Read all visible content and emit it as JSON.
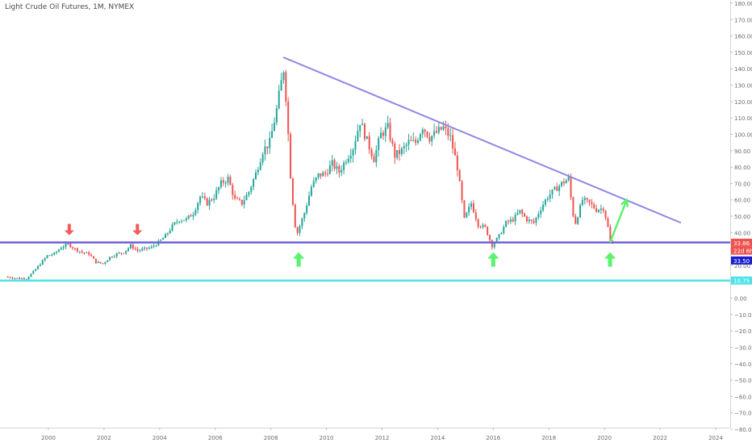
{
  "chart_data": {
    "type": "candlestick",
    "title": "Light Crude Oil Futures, 1M, NYMEX",
    "xlim": [
      1998.5,
      2025.5
    ],
    "ylim": [
      -80,
      180
    ],
    "x_ticks": [
      "2000",
      "2002",
      "2004",
      "2006",
      "2008",
      "2010",
      "2012",
      "2014",
      "2016",
      "2018",
      "2020",
      "2022",
      "2024"
    ],
    "y_ticks": [
      "180.00",
      "170.00",
      "160.00",
      "150.00",
      "140.00",
      "130.00",
      "120.00",
      "110.00",
      "100.00",
      "90.00",
      "80.00",
      "70.00",
      "60.00",
      "50.00",
      "40.00",
      "30.00",
      "20.00",
      "10.00",
      "0.00",
      "−10.00",
      "−20.00",
      "−30.00",
      "−40.00",
      "−50.00",
      "−60.00",
      "−70.00",
      "−80.00"
    ],
    "series": [
      {
        "kind": "price",
        "points": [
          [
            1998.5,
            13
          ],
          [
            1999.0,
            12
          ],
          [
            1999.25,
            12
          ],
          [
            1999.5,
            16
          ],
          [
            1999.75,
            21
          ],
          [
            2000.0,
            26
          ],
          [
            2000.25,
            27
          ],
          [
            2000.5,
            31
          ],
          [
            2000.75,
            33
          ],
          [
            2001.0,
            30
          ],
          [
            2001.25,
            28
          ],
          [
            2001.5,
            27
          ],
          [
            2001.75,
            22
          ],
          [
            2002.0,
            21
          ],
          [
            2002.25,
            25
          ],
          [
            2002.5,
            27
          ],
          [
            2002.75,
            28
          ],
          [
            2003.0,
            32
          ],
          [
            2003.25,
            29
          ],
          [
            2003.5,
            30
          ],
          [
            2003.75,
            31
          ],
          [
            2004.0,
            34
          ],
          [
            2004.25,
            38
          ],
          [
            2004.5,
            44
          ],
          [
            2004.75,
            48
          ],
          [
            2005.0,
            48
          ],
          [
            2005.25,
            52
          ],
          [
            2005.5,
            62
          ],
          [
            2005.75,
            58
          ],
          [
            2006.0,
            62
          ],
          [
            2006.25,
            70
          ],
          [
            2006.5,
            73
          ],
          [
            2006.75,
            60
          ],
          [
            2007.0,
            58
          ],
          [
            2007.25,
            65
          ],
          [
            2007.5,
            76
          ],
          [
            2007.75,
            90
          ],
          [
            2008.0,
            95
          ],
          [
            2008.25,
            115
          ],
          [
            2008.5,
            140
          ],
          [
            2008.6,
            120
          ],
          [
            2008.75,
            75
          ],
          [
            2008.9,
            45
          ],
          [
            2009.0,
            40
          ],
          [
            2009.25,
            52
          ],
          [
            2009.5,
            68
          ],
          [
            2009.75,
            75
          ],
          [
            2010.0,
            76
          ],
          [
            2010.25,
            82
          ],
          [
            2010.5,
            77
          ],
          [
            2010.75,
            85
          ],
          [
            2011.0,
            92
          ],
          [
            2011.25,
            108
          ],
          [
            2011.5,
            96
          ],
          [
            2011.75,
            85
          ],
          [
            2012.0,
            100
          ],
          [
            2012.25,
            104
          ],
          [
            2012.5,
            87
          ],
          [
            2012.75,
            90
          ],
          [
            2013.0,
            95
          ],
          [
            2013.25,
            95
          ],
          [
            2013.5,
            105
          ],
          [
            2013.75,
            98
          ],
          [
            2014.0,
            101
          ],
          [
            2014.25,
            104
          ],
          [
            2014.5,
            98
          ],
          [
            2014.75,
            80
          ],
          [
            2015.0,
            48
          ],
          [
            2015.25,
            58
          ],
          [
            2015.5,
            45
          ],
          [
            2015.75,
            43
          ],
          [
            2016.0,
            32
          ],
          [
            2016.25,
            38
          ],
          [
            2016.5,
            46
          ],
          [
            2016.75,
            48
          ],
          [
            2017.0,
            53
          ],
          [
            2017.25,
            48
          ],
          [
            2017.5,
            46
          ],
          [
            2017.75,
            55
          ],
          [
            2018.0,
            62
          ],
          [
            2018.25,
            66
          ],
          [
            2018.5,
            70
          ],
          [
            2018.75,
            73
          ],
          [
            2018.9,
            52
          ],
          [
            2019.0,
            46
          ],
          [
            2019.25,
            60
          ],
          [
            2019.5,
            58
          ],
          [
            2019.75,
            54
          ],
          [
            2020.0,
            55
          ],
          [
            2020.15,
            45
          ],
          [
            2020.25,
            34
          ],
          [
            2020.3,
            33.86
          ]
        ]
      }
    ],
    "annotations": {
      "resistance_line": {
        "from": [
          2008.45,
          147
        ],
        "to": [
          2022.75,
          46
        ]
      },
      "support_line": {
        "y": 34,
        "color": "#6f5fd8"
      },
      "floor_line": {
        "y": 10.75,
        "color": "#4de3e8"
      },
      "red_arrows_x": [
        2000.75,
        2003.2
      ],
      "green_arrows_x": [
        2009.0,
        2016.0,
        2020.2
      ],
      "projection_arrow": {
        "from": [
          2020.2,
          34
        ],
        "to": [
          2020.8,
          60
        ]
      }
    },
    "price_labels": [
      {
        "text": "33.86",
        "y": 33.86,
        "bg": "#ef5350"
      },
      {
        "text": "22d 6h",
        "y": 29.0,
        "bg": "#ef5350"
      },
      {
        "text": "33.50",
        "y": 23.0,
        "bg": "#1a1ecf"
      },
      {
        "text": "10.75",
        "y": 10.75,
        "bg": "#4de3e8"
      }
    ],
    "colors": {
      "up": "#26a69a",
      "down": "#ef5350",
      "trendline": "#8f86e3",
      "green_arrow": "#5bf26e",
      "red_arrow": "#f25c5c"
    }
  }
}
